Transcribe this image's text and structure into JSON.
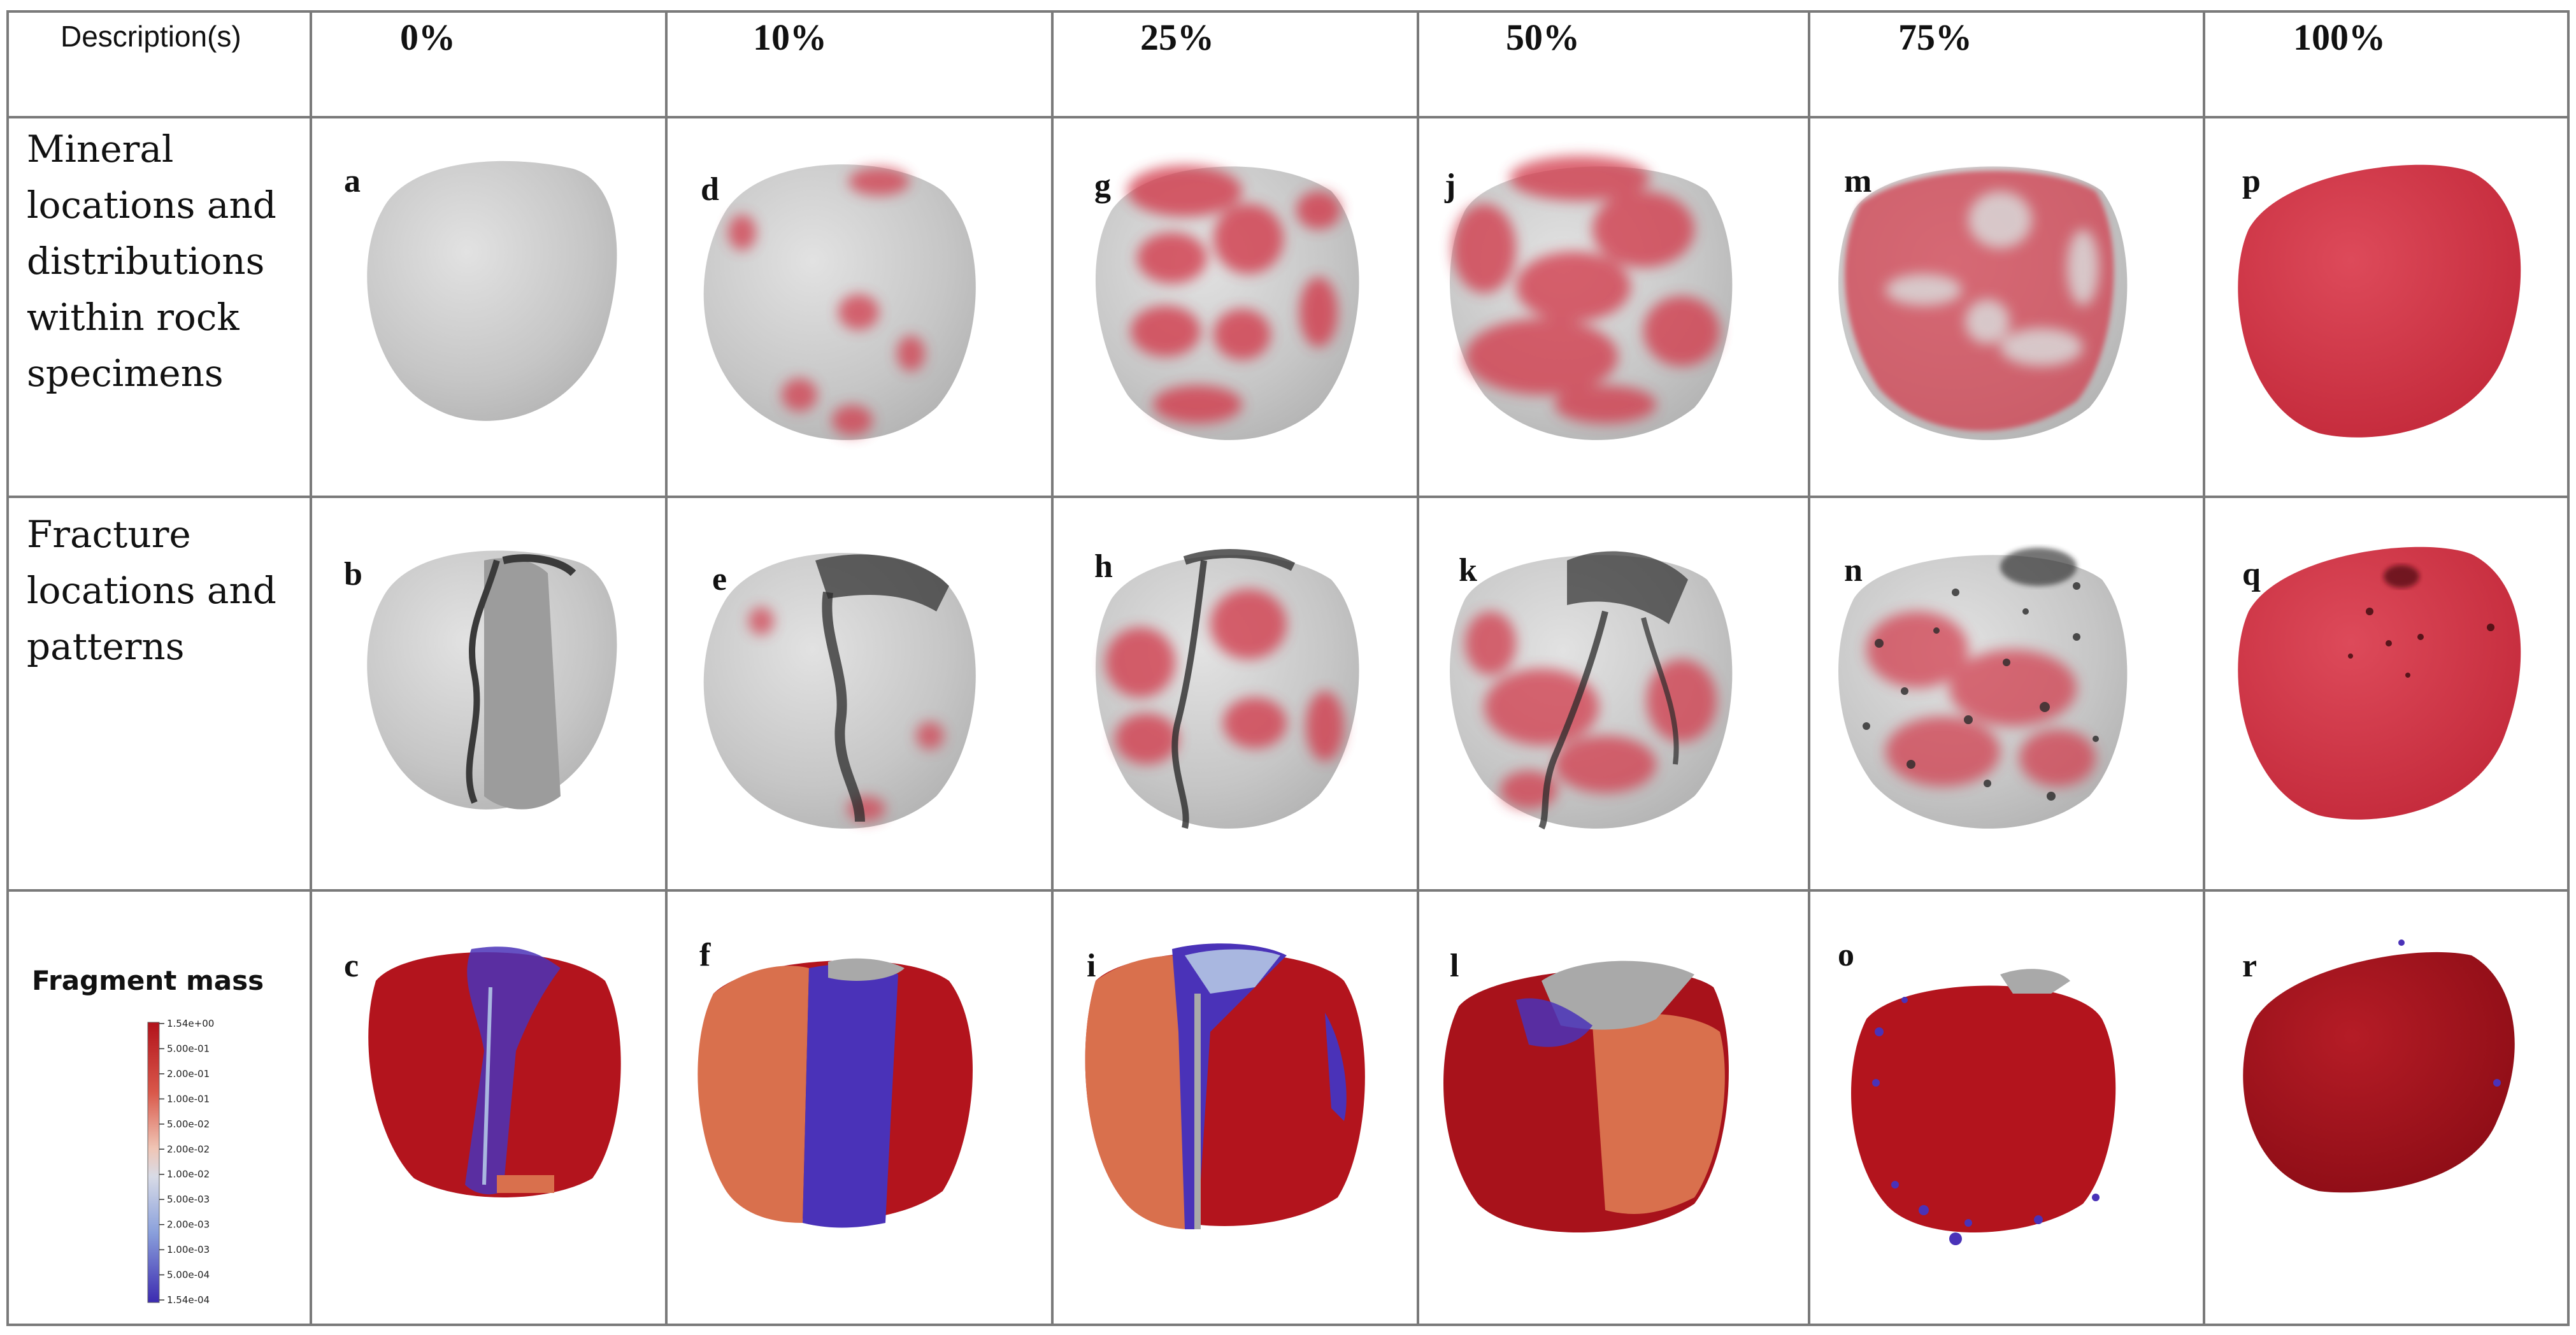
{
  "header": {
    "description_label": "Description(s)",
    "columns": [
      "0%",
      "10%",
      "25%",
      "50%",
      "75%",
      "100%"
    ]
  },
  "rows": [
    {
      "label_lines": [
        "Mineral",
        "locations and",
        "distributions",
        "within rock",
        "specimens"
      ],
      "letters": [
        "a",
        "d",
        "g",
        "j",
        "m",
        "p"
      ]
    },
    {
      "label_lines": [
        "Fracture",
        "locations and",
        "patterns"
      ],
      "letters": [
        "b",
        "e",
        "h",
        "k",
        "n",
        "q"
      ]
    },
    {
      "legend_title": "Fragment mass",
      "letters": [
        "c",
        "f",
        "i",
        "l",
        "o",
        "r"
      ]
    }
  ],
  "legend": {
    "ticks": [
      "1.54e+00",
      "5.00e-01",
      "2.00e-01",
      "1.00e-01",
      "5.00e-02",
      "2.00e-02",
      "1.00e-02",
      "5.00e-03",
      "2.00e-03",
      "1.00e-03",
      "5.00e-04",
      "1.54e-04"
    ]
  },
  "colors": {
    "grey_rock": "#c9c9c9",
    "mineral_red": "#d23a4c",
    "fracture_dark": "#2a2a2a",
    "mass_high": "#a8121b",
    "mass_mid_orange": "#d9704d",
    "mass_low_blue": "#4a32b8",
    "mass_light_blue": "#a9b7e0"
  }
}
